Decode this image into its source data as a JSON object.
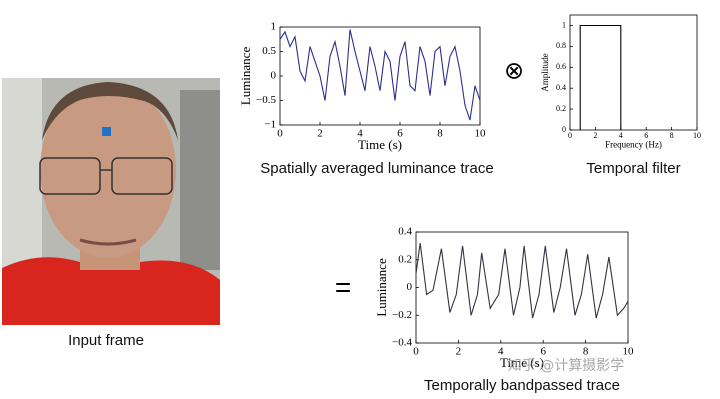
{
  "chart_data": [
    {
      "type": "line",
      "caption": "Spatially averaged luminance trace",
      "xlabel": "Time (s)",
      "ylabel": "Luminance",
      "color": "#2b2f8f",
      "x": [
        0,
        0.25,
        0.5,
        0.75,
        1,
        1.25,
        1.5,
        1.75,
        2,
        2.25,
        2.5,
        2.75,
        3,
        3.25,
        3.5,
        3.75,
        4,
        4.25,
        4.5,
        4.75,
        5,
        5.25,
        5.5,
        5.75,
        6,
        6.25,
        6.5,
        6.75,
        7,
        7.25,
        7.5,
        7.75,
        8,
        8.25,
        8.5,
        8.75,
        9,
        9.25,
        9.5,
        9.75,
        10
      ],
      "values": [
        0.75,
        0.9,
        0.6,
        0.8,
        0.1,
        -0.1,
        0.6,
        0.3,
        0.0,
        -0.5,
        0.4,
        0.7,
        0.2,
        -0.4,
        0.95,
        0.5,
        0.1,
        -0.3,
        0.6,
        0.2,
        -0.3,
        0.5,
        0.3,
        -0.5,
        0.4,
        0.7,
        -0.2,
        -0.3,
        0.6,
        0.3,
        -0.4,
        0.5,
        0.6,
        -0.2,
        0.4,
        0.6,
        0.1,
        -0.6,
        -0.9,
        -0.2,
        -0.5
      ],
      "xlim": [
        0,
        10
      ],
      "xticks": [
        0,
        2,
        4,
        6,
        8,
        10
      ],
      "ylim": [
        -1,
        1
      ],
      "yticks": [
        {
          "value": -1,
          "label": "−1"
        },
        {
          "value": -0.5,
          "label": "−0.5"
        },
        0,
        0.5,
        1
      ]
    },
    {
      "type": "line",
      "caption": "Temporal filter",
      "xlabel": "Frequency (Hz)",
      "ylabel": "Amplitude",
      "color": "#000000",
      "x": [
        0.8,
        0.8,
        4,
        4
      ],
      "values": [
        0,
        1,
        1,
        0
      ],
      "xlim": [
        0,
        10
      ],
      "xticks": [
        0,
        2,
        4,
        6,
        8,
        10
      ],
      "ylim": [
        0,
        1.1
      ],
      "yticks": [
        0,
        0.2,
        0.4,
        0.6,
        0.8,
        1
      ]
    },
    {
      "type": "line",
      "caption": "Temporally bandpassed trace",
      "xlabel": "Time (s)",
      "ylabel": "Luminance",
      "color": "#333344",
      "x": [
        0,
        0.2,
        0.5,
        0.8,
        1.2,
        1.6,
        1.9,
        2.2,
        2.6,
        2.9,
        3.1,
        3.5,
        3.9,
        4.2,
        4.6,
        4.9,
        5.1,
        5.5,
        5.8,
        6.1,
        6.5,
        6.8,
        7.1,
        7.5,
        7.8,
        8.1,
        8.5,
        8.8,
        9.1,
        9.5,
        9.8,
        10
      ],
      "values": [
        0.1,
        0.32,
        -0.05,
        -0.02,
        0.28,
        -0.18,
        -0.05,
        0.3,
        -0.2,
        -0.05,
        0.25,
        -0.15,
        -0.05,
        0.28,
        -0.2,
        0.0,
        0.3,
        -0.22,
        -0.05,
        0.3,
        -0.18,
        0.0,
        0.28,
        -0.2,
        -0.05,
        0.24,
        -0.22,
        -0.05,
        0.22,
        -0.2,
        -0.15,
        -0.1
      ],
      "xlim": [
        0,
        10
      ],
      "xticks": [
        0,
        2,
        4,
        6,
        8,
        10
      ],
      "ylim": [
        -0.4,
        0.4
      ],
      "yticks": [
        {
          "value": -0.4,
          "label": "−0.4"
        },
        {
          "value": -0.2,
          "label": "−0.2"
        },
        0,
        0.2,
        0.4
      ]
    }
  ],
  "input_frame": {
    "caption": "Input frame"
  },
  "operators": [
    "⊗",
    "="
  ],
  "watermark": "知乎 @计算摄影学"
}
